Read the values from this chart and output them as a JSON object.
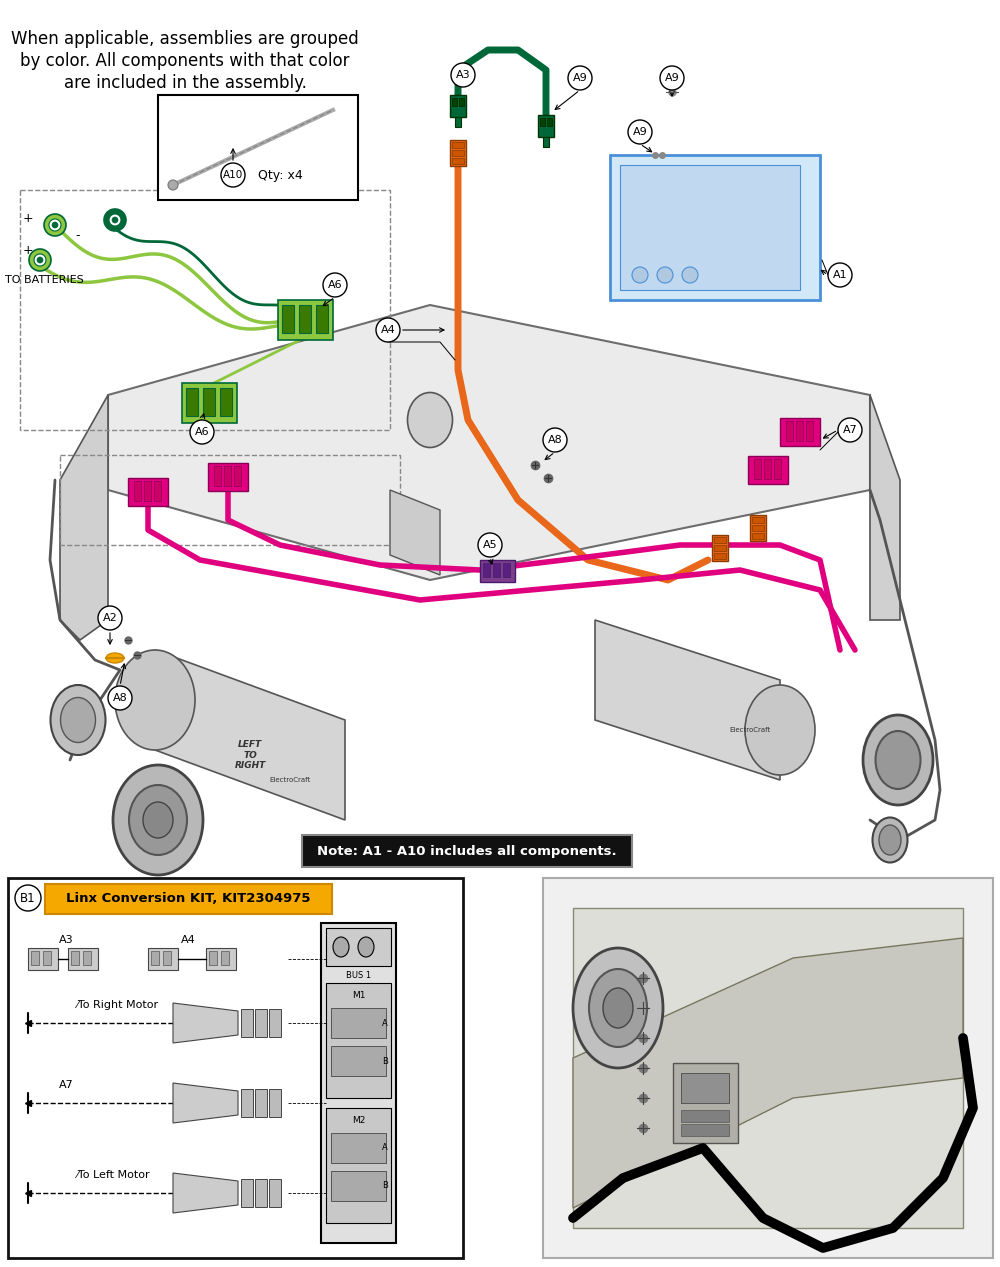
{
  "background_color": "#ffffff",
  "top_text_line1": "When applicable, assemblies are grouped",
  "top_text_line2": "by color. All components with that color",
  "top_text_line3": "are included in the assembly.",
  "note_text": "Note: A1 - A10 includes all components.",
  "kit_name": "Linx Conversion KIT, KIT2304975",
  "kit_label_color": "#f5a800",
  "colors": {
    "green_light": "#8dc63f",
    "green_dark": "#006838",
    "orange": "#e8671b",
    "magenta": "#e0007f",
    "blue": "#4a90d9",
    "blue_light": "#bdd7ee",
    "purple": "#7b3f8c",
    "yellow": "#f5a800",
    "gray_line": "#555555",
    "gray_fill": "#d9d9d9",
    "gray_med": "#aaaaaa",
    "black": "#1a1a1a",
    "white": "#ffffff",
    "chassis": "#c8c8c8",
    "chassis_dark": "#888888"
  },
  "figsize": [
    10.0,
    12.67
  ],
  "dpi": 100
}
